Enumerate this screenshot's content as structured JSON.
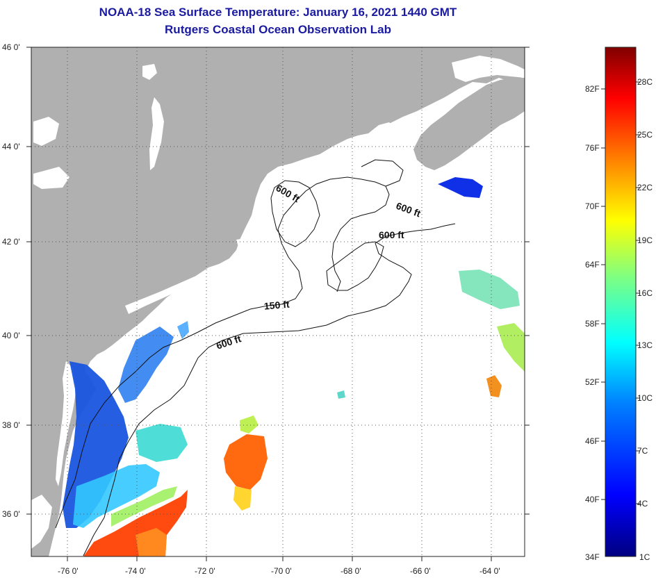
{
  "title": "NOAA-18 Sea Surface Temperature:  January 16, 2021 1440 GMT",
  "subtitle": "Rutgers Coastal Ocean Observation Lab",
  "lat_ticks": [
    "46 0'",
    "44 0'",
    "42 0'",
    "40 0'",
    "38 0'",
    "36 0'"
  ],
  "lon_ticks": [
    "-76 0'",
    "-74 0'",
    "-72 0'",
    "-70 0'",
    "-68 0'",
    "-66 0'",
    "-64 0'"
  ],
  "isobath_labels": [
    "600 ft",
    "600 ft",
    "600 ft",
    "150 ft",
    "600 ft"
  ],
  "colorbar": {
    "fahrenheit": [
      "82F",
      "76F",
      "70F",
      "64F",
      "58F",
      "52F",
      "46F",
      "40F",
      "34F"
    ],
    "celsius": [
      "28C",
      "25C",
      "22C",
      "19C",
      "16C",
      "13C",
      "10C",
      "7C",
      "4C",
      "1C"
    ],
    "colors": [
      "#000080",
      "#0000ff",
      "#0080ff",
      "#00ffff",
      "#80ff80",
      "#ffff00",
      "#ff8000",
      "#ff0000",
      "#800000"
    ]
  },
  "colors": {
    "land": "#b0b0b0",
    "ocean": "#ffffff",
    "title": "#1a1aa0"
  }
}
